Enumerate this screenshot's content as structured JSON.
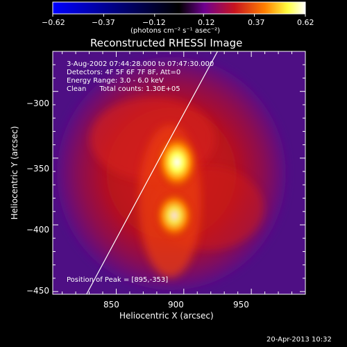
{
  "chart_data": {
    "type": "heatmap",
    "title": "Reconstructed RHESSI Image",
    "xlabel": "Heliocentric X (arcsec)",
    "ylabel": "Heliocentric Y (arcsec)",
    "xlim": [
      803,
      990
    ],
    "ylim": [
      -452,
      -270
    ],
    "x_ticks": [
      850,
      900,
      950
    ],
    "x_tick_labels": [
      "850",
      "900",
      "950"
    ],
    "y_ticks": [
      -300,
      -350,
      -400,
      -450
    ],
    "y_tick_labels": [
      "−300",
      "−350",
      "−400",
      "−450"
    ],
    "colorbar": {
      "range": [
        -0.62,
        0.62
      ],
      "tick_labels": [
        "−0.62",
        "−0.37",
        "−0.12",
        "0.12",
        "0.37",
        "0.62"
      ],
      "units": "(photons cm⁻² s⁻¹ asec⁻²)"
    },
    "sources": [
      {
        "x": 895,
        "y": -353,
        "peak": 0.62
      },
      {
        "x": 893,
        "y": -393,
        "peak": 0.5
      }
    ],
    "limb_line": [
      [
        828,
        -452
      ],
      [
        888,
        -339
      ],
      [
        925,
        -270
      ]
    ],
    "annotations": [
      "3-Aug-2002 07:44:28.000 to 07:47:30.000",
      "Detectors: 4F 5F 6F 7F 8F, Att=0",
      "Energy Range: 3.0 - 6.0 keV",
      "Clean      Total counts: 1.30E+05"
    ],
    "peak_label": "Position of Peak = [895,-353]",
    "timestamp": "20-Apr-2013 10:32",
    "colormap": [
      "#0000ff",
      "#000000",
      "#7a00ae",
      "#c8141f",
      "#ff8000",
      "#ffff40",
      "#ffffff"
    ]
  }
}
